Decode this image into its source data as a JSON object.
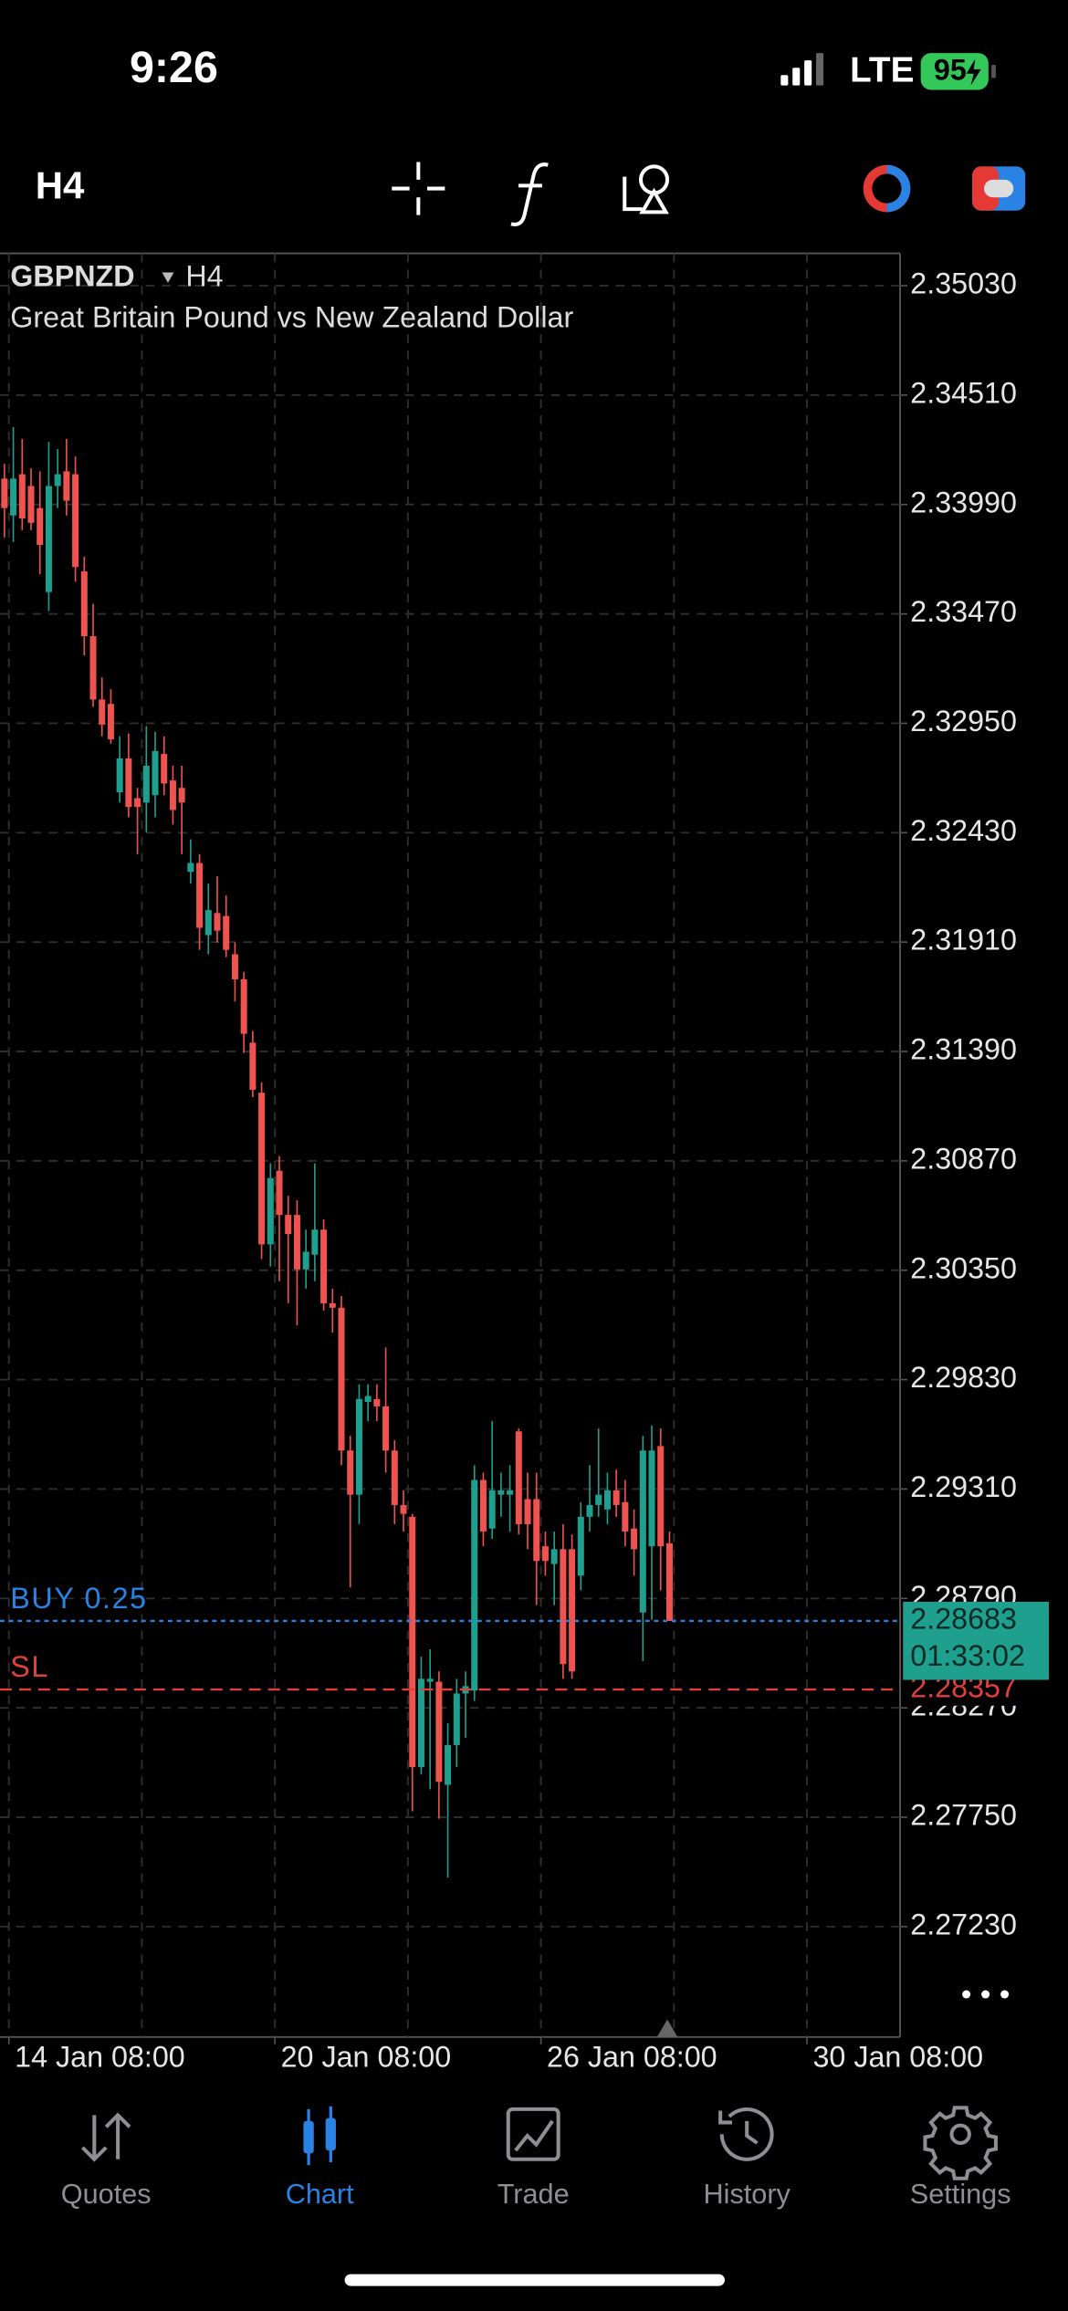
{
  "status_bar": {
    "time": "9:26",
    "network": "LTE",
    "battery": "95"
  },
  "toolbar": {
    "timeframe": "H4"
  },
  "chart_data": {
    "type": "candlestick",
    "symbol": "GBPNZD",
    "timeframe": "H4",
    "description": "Great Britain Pound vs New Zealand Dollar",
    "up_color": "#1fa08f",
    "down_color": "#ef5350",
    "grid": true,
    "x": [
      0,
      1,
      2,
      3,
      4,
      5,
      6,
      7,
      8,
      9,
      10,
      11,
      12,
      13,
      14,
      15,
      16,
      17,
      18,
      19,
      20,
      21,
      22,
      23,
      24,
      25,
      26,
      27,
      28,
      29,
      30,
      31,
      32,
      33,
      34,
      35,
      36,
      37,
      38,
      39,
      40,
      41,
      42,
      43,
      44,
      45,
      46,
      47,
      48,
      49,
      50,
      51,
      52,
      53,
      54,
      55,
      56,
      57,
      58,
      59,
      60,
      61,
      62,
      63,
      64,
      65,
      66,
      67,
      68,
      69,
      70,
      71,
      72,
      73,
      74,
      75
    ],
    "open": [
      2.34113,
      2.33938,
      2.34134,
      2.34078,
      2.33973,
      2.33574,
      2.34078,
      2.34148,
      2.34134,
      2.33672,
      2.33364,
      2.33063,
      2.33042,
      2.32622,
      2.32783,
      2.32594,
      2.32573,
      2.32608,
      2.32804,
      2.32678,
      2.32643,
      2.32244,
      2.32286,
      2.31943,
      2.32048,
      2.32034,
      2.31852,
      2.31733,
      2.31432,
      2.31194,
      2.30473,
      2.30823,
      2.30613,
      2.30613,
      2.30354,
      2.30424,
      2.30543,
      2.30193,
      2.30172,
      2.29493,
      2.29283,
      2.29724,
      2.29738,
      2.29703,
      2.29493,
      2.29234,
      2.29178,
      2.27988,
      2.28394,
      2.28394,
      2.27904,
      2.28093,
      2.28338,
      2.28352,
      2.29353,
      2.29122,
      2.29283,
      2.29283,
      2.29584,
      2.29262,
      2.29262,
      2.29038,
      2.28954,
      2.29024,
      2.29024,
      2.28898,
      2.29178,
      2.29234,
      2.29213,
      2.29304,
      2.29248,
      2.29122,
      2.28723,
      2.29038,
      2.29514,
      2.29052
    ],
    "high": [
      2.34183,
      2.34358,
      2.34302,
      2.34162,
      2.34148,
      2.34288,
      2.34253,
      2.34302,
      2.34218,
      2.33742,
      2.33518,
      2.33168,
      2.33112,
      2.32888,
      2.32902,
      2.32643,
      2.32937,
      2.32909,
      2.32888,
      2.32748,
      2.32748,
      2.32398,
      2.32328,
      2.32188,
      2.32223,
      2.32132,
      2.31908,
      2.31768,
      2.31488,
      2.31243,
      2.30858,
      2.30893,
      2.30704,
      2.30683,
      2.30543,
      2.30858,
      2.30592,
      2.30263,
      2.30228,
      2.29563,
      2.29808,
      2.29808,
      2.29808,
      2.29983,
      2.29542,
      2.29304,
      2.29192,
      2.28513,
      2.28548,
      2.28443,
      2.28198,
      2.28408,
      2.28443,
      2.29423,
      2.29388,
      2.29633,
      2.29388,
      2.29423,
      2.29598,
      2.29388,
      2.29388,
      2.29108,
      2.29108,
      2.29143,
      2.29094,
      2.29248,
      2.29423,
      2.29598,
      2.29388,
      2.29402,
      2.29353,
      2.29213,
      2.29563,
      2.29612,
      2.29598,
      2.29108
    ],
    "low": [
      2.33833,
      2.33812,
      2.33868,
      2.33868,
      2.33658,
      2.33483,
      2.33973,
      2.33938,
      2.33623,
      2.33273,
      2.33028,
      2.32888,
      2.32853,
      2.32573,
      2.32503,
      2.32328,
      2.32433,
      2.32503,
      2.32608,
      2.32468,
      2.32328,
      2.32188,
      2.31873,
      2.31852,
      2.31908,
      2.31838,
      2.31628,
      2.31383,
      2.31173,
      2.30403,
      2.30368,
      2.30298,
      2.30193,
      2.30088,
      2.30263,
      2.30298,
      2.30158,
      2.30053,
      2.29423,
      2.28842,
      2.29143,
      2.29633,
      2.29633,
      2.29388,
      2.29143,
      2.29108,
      2.27778,
      2.27953,
      2.27883,
      2.27743,
      2.27463,
      2.27988,
      2.28128,
      2.28303,
      2.29038,
      2.29073,
      2.29178,
      2.29108,
      2.29094,
      2.29024,
      2.28758,
      2.28898,
      2.28758,
      2.28408,
      2.28408,
      2.28828,
      2.29108,
      2.29178,
      2.29143,
      2.29178,
      2.29038,
      2.28898,
      2.28492,
      2.28688,
      2.28828,
      2.28683
    ],
    "close": [
      2.33973,
      2.34113,
      2.33924,
      2.33903,
      2.33798,
      2.34078,
      2.34134,
      2.34008,
      2.33693,
      2.33364,
      2.33063,
      2.32944,
      2.32874,
      2.32783,
      2.32552,
      2.32552,
      2.32748,
      2.32818,
      2.32664,
      2.32538,
      2.32573,
      2.32286,
      2.31978,
      2.32062,
      2.31964,
      2.31873,
      2.31733,
      2.31474,
      2.31208,
      2.30473,
      2.30788,
      2.30613,
      2.30522,
      2.30354,
      2.30438,
      2.30543,
      2.30193,
      2.30172,
      2.29493,
      2.29283,
      2.29738,
      2.29752,
      2.29703,
      2.29493,
      2.29234,
      2.29192,
      2.27988,
      2.28408,
      2.28408,
      2.27918,
      2.28093,
      2.28338,
      2.28373,
      2.29353,
      2.29108,
      2.29304,
      2.29304,
      2.29304,
      2.29143,
      2.29143,
      2.28968,
      2.28968,
      2.29024,
      2.28478,
      2.28443,
      2.29178,
      2.29234,
      2.29283,
      2.29304,
      2.29234,
      2.29108,
      2.29024,
      2.29493,
      2.29493,
      2.29038,
      2.28683
    ],
    "xlim": [
      -0.5,
      101
    ],
    "xticks": [
      {
        "value": 0.5,
        "label": "14 Jan 08:00"
      },
      {
        "value": 30.5,
        "label": "20 Jan 08:00"
      },
      {
        "value": 60.5,
        "label": "26 Jan 08:00"
      },
      {
        "value": 90.5,
        "label": "30 Jan 08:00"
      }
    ],
    "ylim": [
      2.26705,
      2.35184
    ],
    "yticks": [
      {
        "value": 2.3503,
        "label": "2.35030"
      },
      {
        "value": 2.3451,
        "label": "2.34510"
      },
      {
        "value": 2.3399,
        "label": "2.33990"
      },
      {
        "value": 2.3347,
        "label": "2.33470"
      },
      {
        "value": 2.3295,
        "label": "2.32950"
      },
      {
        "value": 2.3243,
        "label": "2.32430"
      },
      {
        "value": 2.3191,
        "label": "2.31910"
      },
      {
        "value": 2.3139,
        "label": "2.31390"
      },
      {
        "value": 2.3087,
        "label": "2.30870"
      },
      {
        "value": 2.3035,
        "label": "2.30350"
      },
      {
        "value": 2.2983,
        "label": "2.29830"
      },
      {
        "value": 2.2931,
        "label": "2.29310"
      },
      {
        "value": 2.2879,
        "label": "2.28790"
      },
      {
        "value": 2.2827,
        "label": "2.28270"
      },
      {
        "value": 2.2775,
        "label": "2.27750"
      },
      {
        "value": 2.2723,
        "label": "2.27230"
      }
    ],
    "orders": [
      {
        "label": "BUY 0.25",
        "value": 2.28683,
        "color": "#2a82e4"
      },
      {
        "label": "SL",
        "value": 2.28357,
        "color": "#e0403c"
      }
    ],
    "price_box": {
      "value": 2.28683,
      "timer": "01:33:02",
      "color": "#1fa08f"
    }
  },
  "tabs": [
    {
      "label": "Quotes"
    },
    {
      "label": "Chart"
    },
    {
      "label": "Trade"
    },
    {
      "label": "History"
    },
    {
      "label": "Settings"
    }
  ],
  "active_tab": 1
}
